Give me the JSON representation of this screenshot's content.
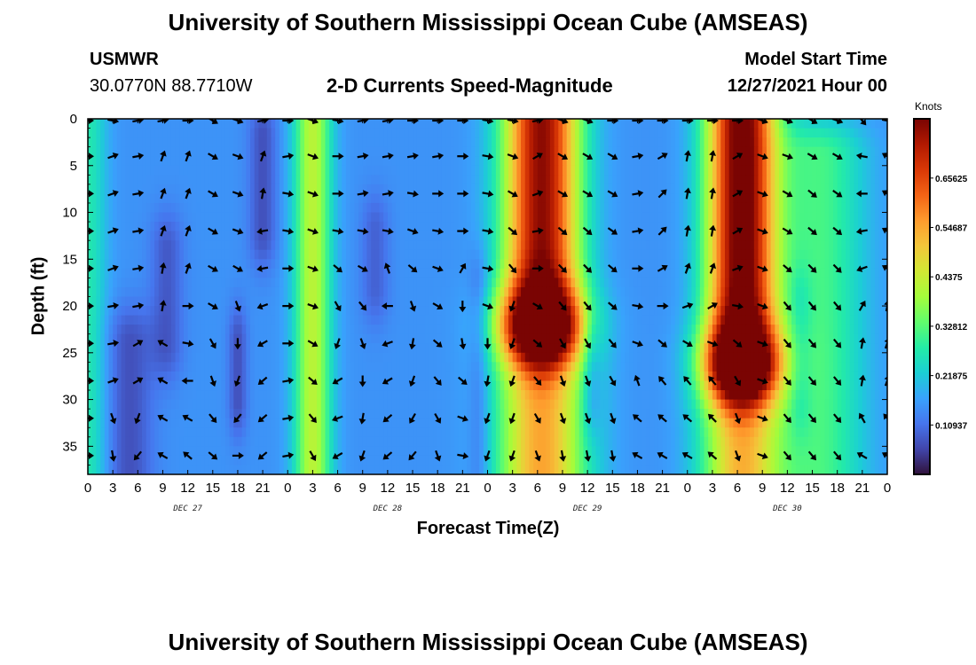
{
  "header": {
    "title": "University of Southern Mississippi Ocean Cube (AMSEAS)",
    "station": "USMWR",
    "coords": "30.0770N  88.7710W",
    "subtitle": "2-D Currents Speed-Magnitude",
    "model_start_label": "Model Start Time",
    "model_start_value": "12/27/2021 Hour 00"
  },
  "footer": {
    "title": "University of Southern Mississippi Ocean Cube (AMSEAS)"
  },
  "chart_data": {
    "type": "heatmap",
    "title": "2-D Currents Speed-Magnitude",
    "xlabel": "Forecast Time(Z)",
    "ylabel": "Depth (ft)",
    "x_range_hours": [
      0,
      96
    ],
    "x_ticks": [
      "0",
      "3",
      "6",
      "9",
      "12",
      "15",
      "18",
      "21",
      "0",
      "3",
      "6",
      "9",
      "12",
      "15",
      "18",
      "21",
      "0",
      "3",
      "6",
      "9",
      "12",
      "15",
      "18",
      "21",
      "0",
      "3",
      "6",
      "9",
      "12",
      "15",
      "18",
      "21",
      "0"
    ],
    "day_labels": [
      {
        "label": "DEC 27",
        "hour": 12
      },
      {
        "label": "DEC 28",
        "hour": 36
      },
      {
        "label": "DEC 29",
        "hour": 60
      },
      {
        "label": "DEC 30",
        "hour": 84
      }
    ],
    "y_range_ft": [
      0,
      38
    ],
    "y_ticks": [
      0,
      5,
      10,
      15,
      20,
      25,
      30,
      35
    ],
    "y_tick_labels": [
      "0",
      "5",
      "10",
      "15",
      "20",
      "25",
      "30",
      "35"
    ],
    "colorbar": {
      "units": "Knots",
      "range": [
        0,
        0.7875
      ],
      "tick_values": [
        0.10937,
        0.21875,
        0.32812,
        0.4375,
        0.54687,
        0.65625
      ],
      "tick_labels": [
        "0.10937",
        "0.21875",
        "0.32812",
        "0.4375",
        "0.54687",
        "0.65625"
      ],
      "stops": [
        "#30123b",
        "#4145ab",
        "#4675ed",
        "#39a2fc",
        "#1bcfd4",
        "#24eca6",
        "#61fc6c",
        "#a4fc3b",
        "#d1e834",
        "#f3c63a",
        "#fe9b2d",
        "#f36315",
        "#d93806",
        "#b11901",
        "#7a0403"
      ]
    },
    "speed_features_knots": [
      {
        "hour": 0,
        "sigma_h": 1.6,
        "depth_from": 0,
        "depth_to": 38,
        "peak": 0.12
      },
      {
        "hour": 9.5,
        "sigma_h": 1.4,
        "depth_from": 14,
        "depth_to": 24,
        "peak": -0.07
      },
      {
        "hour": 5,
        "sigma_h": 2.0,
        "depth_from": 24,
        "depth_to": 38,
        "peak": -0.08
      },
      {
        "hour": 18,
        "sigma_h": 0.8,
        "depth_from": 24,
        "depth_to": 30,
        "peak": -0.08
      },
      {
        "hour": 21,
        "sigma_h": 1.2,
        "depth_from": 2,
        "depth_to": 12,
        "peak": -0.08
      },
      {
        "hour": 27,
        "sigma_h": 1.6,
        "depth_from": 0,
        "depth_to": 38,
        "peak": 0.27
      },
      {
        "hour": 34.5,
        "sigma_h": 1.2,
        "depth_from": 12,
        "depth_to": 18,
        "peak": -0.06
      },
      {
        "hour": 47,
        "sigma_h": 0.9,
        "depth_from": 18,
        "depth_to": 38,
        "peak": -0.06
      },
      {
        "hour": 54.5,
        "sigma_h": 3.2,
        "depth_from": 0,
        "depth_to": 22,
        "peak": 0.62
      },
      {
        "hour": 54.5,
        "sigma_h": 3.8,
        "depth_from": 22,
        "depth_to": 38,
        "peak": 0.4
      },
      {
        "hour": 60.5,
        "sigma_h": 0.8,
        "depth_from": 24,
        "depth_to": 30,
        "peak": -0.07
      },
      {
        "hour": 78.5,
        "sigma_h": 2.9,
        "depth_from": 0,
        "depth_to": 26,
        "peak": 0.68
      },
      {
        "hour": 78.5,
        "sigma_h": 3.4,
        "depth_from": 26,
        "depth_to": 38,
        "peak": 0.38
      },
      {
        "hour": 88,
        "sigma_h": 3.8,
        "depth_from": 4,
        "depth_to": 38,
        "peak": 0.16
      },
      {
        "hour": 85.5,
        "sigma_h": 1.0,
        "depth_from": 20,
        "depth_to": 30,
        "peak": -0.05
      }
    ],
    "background_speed_knots": 0.15,
    "vector_times_hours": [
      0,
      3,
      6,
      9,
      12,
      15,
      18,
      21,
      24,
      27,
      30,
      33,
      36,
      39,
      42,
      45,
      48,
      51,
      54,
      57,
      60,
      63,
      66,
      69,
      72,
      75,
      78,
      81,
      84,
      87,
      90,
      93,
      96
    ],
    "vector_depths_ft": [
      0,
      4,
      8,
      12,
      16,
      20,
      24,
      28,
      32,
      36
    ],
    "vector_directions_deg": {
      "columns_0_to_8": [
        [
          90,
          90,
          90,
          90,
          90,
          90,
          90,
          90,
          90,
          90
        ],
        [
          100,
          70,
          70,
          70,
          70,
          80,
          80,
          70,
          160,
          170
        ],
        [
          80,
          80,
          80,
          80,
          80,
          80,
          60,
          60,
          200,
          220
        ],
        [
          80,
          20,
          20,
          20,
          10,
          10,
          300,
          300,
          300,
          300
        ],
        [
          90,
          20,
          20,
          20,
          20,
          90,
          100,
          270,
          300,
          310
        ],
        [
          120,
          120,
          120,
          120,
          120,
          120,
          150,
          160,
          140,
          130
        ],
        [
          110,
          110,
          110,
          110,
          120,
          160,
          180,
          200,
          220,
          90
        ],
        [
          80,
          20,
          10,
          260,
          260,
          250,
          240,
          230,
          230,
          230
        ],
        [
          90,
          80,
          100,
          100,
          90,
          90,
          90,
          80,
          80,
          80
        ]
      ],
      "columns_9_to_16": [
        [
          110,
          110,
          110,
          110,
          110,
          110,
          120,
          130,
          140,
          150
        ],
        [
          100,
          90,
          90,
          100,
          130,
          150,
          200,
          240,
          250,
          240
        ],
        [
          80,
          80,
          80,
          100,
          120,
          140,
          160,
          180,
          190,
          200
        ],
        [
          80,
          80,
          80,
          100,
          340,
          270,
          250,
          240,
          230,
          230
        ],
        [
          90,
          80,
          100,
          110,
          130,
          160,
          190,
          200,
          210,
          220
        ],
        [
          90,
          80,
          90,
          100,
          110,
          120,
          130,
          140,
          150,
          160
        ],
        [
          90,
          90,
          90,
          90,
          30,
          180,
          170,
          130,
          110,
          100
        ],
        [
          100,
          100,
          100,
          100,
          100,
          110,
          180,
          190,
          200,
          200
        ],
        [
          100,
          110,
          120,
          130,
          140,
          200,
          200,
          200,
          200,
          200
        ]
      ],
      "columns_17_to_24": [
        [
          80,
          60,
          70,
          80,
          90,
          120,
          130,
          140,
          150,
          160
        ],
        [
          110,
          120,
          120,
          130,
          135,
          140,
          150,
          160,
          160,
          170
        ],
        [
          110,
          120,
          120,
          130,
          135,
          140,
          150,
          160,
          160,
          170
        ],
        [
          90,
          120,
          120,
          125,
          130,
          130,
          140,
          150,
          160,
          170
        ],
        [
          90,
          80,
          80,
          80,
          90,
          100,
          110,
          340,
          310,
          300
        ],
        [
          90,
          60,
          45,
          45,
          60,
          90,
          130,
          320,
          310,
          300
        ],
        [
          90,
          10,
          10,
          10,
          20,
          70,
          120,
          320,
          310,
          300
        ],
        [
          90,
          10,
          10,
          10,
          20,
          60,
          110,
          320,
          315,
          310
        ],
        [
          90,
          60,
          60,
          60,
          70,
          100,
          130,
          150,
          160,
          160
        ]
      ],
      "columns_25_to_32": [
        [
          110,
          110,
          110,
          110,
          110,
          110,
          110,
          110,
          110,
          110
        ],
        [
          110,
          110,
          120,
          120,
          130,
          140,
          140,
          140,
          140,
          140
        ],
        [
          120,
          120,
          130,
          130,
          135,
          140,
          140,
          140,
          140,
          140
        ],
        [
          110,
          120,
          125,
          130,
          135,
          140,
          140,
          140,
          140,
          140
        ],
        [
          140,
          280,
          270,
          260,
          250,
          30,
          10,
          10,
          330,
          300
        ],
        [
          100,
          300,
          300,
          300,
          300,
          10,
          20,
          20,
          320,
          300
        ],
        [
          90,
          290,
          300,
          300,
          20,
          20,
          20,
          10,
          330,
          320
        ],
        [
          90,
          300,
          300,
          300,
          30,
          20,
          20,
          10,
          320,
          300
        ],
        [
          90,
          300,
          310,
          310,
          320,
          20,
          10,
          290,
          300,
          280
        ]
      ]
    }
  }
}
